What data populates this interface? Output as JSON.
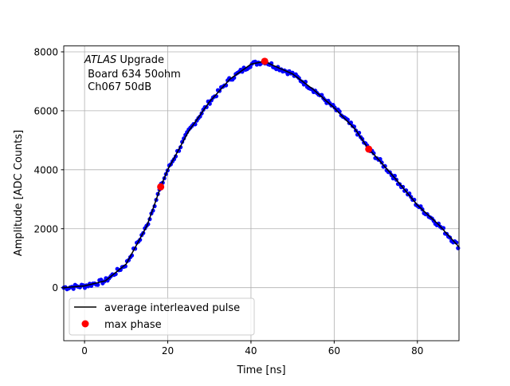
{
  "chart_data": {
    "type": "line",
    "title": "",
    "xlabel": "Time [ns]",
    "ylabel": "Amplitude [ADC Counts]",
    "xlim": [
      -5,
      90
    ],
    "ylim": [
      -1800,
      8200
    ],
    "xticks": [
      0,
      20,
      40,
      60,
      80
    ],
    "yticks": [
      0,
      2000,
      4000,
      6000,
      8000
    ],
    "grid": true,
    "annotation": {
      "italic": "ATLAS",
      "rest": " Upgrade",
      "line2": " Board 634 50ohm",
      "line3": " Ch067 50dB"
    },
    "legend": {
      "placement": "lower-left",
      "entries": [
        "average interleaved pulse",
        "max phase"
      ]
    },
    "series": [
      {
        "name": "average interleaved pulse",
        "color": "#000000",
        "x": [
          -5,
          0,
          5,
          10,
          15,
          18.3,
          20,
          25,
          30,
          35,
          40,
          43.3,
          45,
          50,
          55,
          60,
          65,
          68.3,
          70,
          75,
          80,
          85,
          90
        ],
        "y": [
          0,
          60,
          230,
          800,
          2100,
          3420,
          4000,
          5300,
          6300,
          7080,
          7580,
          7680,
          7560,
          7250,
          6720,
          6100,
          5380,
          4700,
          4450,
          3650,
          2800,
          2150,
          1380
        ]
      },
      {
        "name": "max phase",
        "color": "#ff0000",
        "x": [
          18.3,
          43.3,
          68.3
        ],
        "y": [
          3420,
          7680,
          4700
        ]
      }
    ],
    "samples_color": "#0000ff"
  }
}
